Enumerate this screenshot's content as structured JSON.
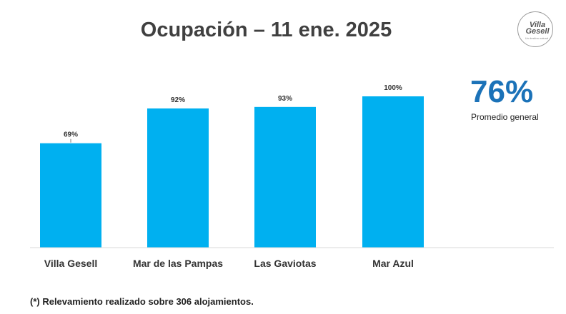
{
  "title": "Ocupación – 11 ene. 2025",
  "logo": {
    "line1": "Villa",
    "line2": "Gesell",
    "tagline": "Un destino natural"
  },
  "kpi": {
    "value": "76%",
    "label": "Promedio general"
  },
  "footnote": "(*) Relevamiento realizado sobre 306 alojamientos.",
  "colors": {
    "bar": "#00b0f0",
    "kpi": "#1b72b8"
  },
  "chart_data": {
    "type": "bar",
    "title": "Ocupación – 11 ene. 2025",
    "categories": [
      "Villa Gesell",
      "Mar de las Pampas",
      "Las Gaviotas",
      "Mar Azul"
    ],
    "values": [
      69,
      92,
      93,
      100
    ],
    "value_labels": [
      "69%",
      "92%",
      "93%",
      "100%"
    ],
    "unit": "%",
    "ylim": [
      0,
      100
    ],
    "grid": false,
    "legend": "none"
  }
}
